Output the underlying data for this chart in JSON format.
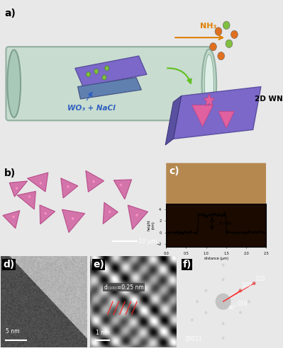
{
  "title_a": "a)",
  "title_b": "b)",
  "title_c": "c)",
  "title_d": "d)",
  "title_e": "e)",
  "title_f": "f)",
  "bg_color": "#e8e8e8",
  "purple_color": "#7b68c8",
  "dark_purple": "#5a50a0",
  "pink_color": "#e060a0",
  "arrow_color": "#e08000",
  "nh3_color": "#e08000",
  "label_color": "#3060c0",
  "green_arrow": "#60c020",
  "panel_b_bg": "#f0a8a8",
  "crystal_color": "#d060a0",
  "panel_c_bg": "#c87820",
  "panel_f_bg": "#101010",
  "white": "#ffffff",
  "black": "#000000",
  "red_line": "#ff2020",
  "panel_label_fontsize": 10
}
